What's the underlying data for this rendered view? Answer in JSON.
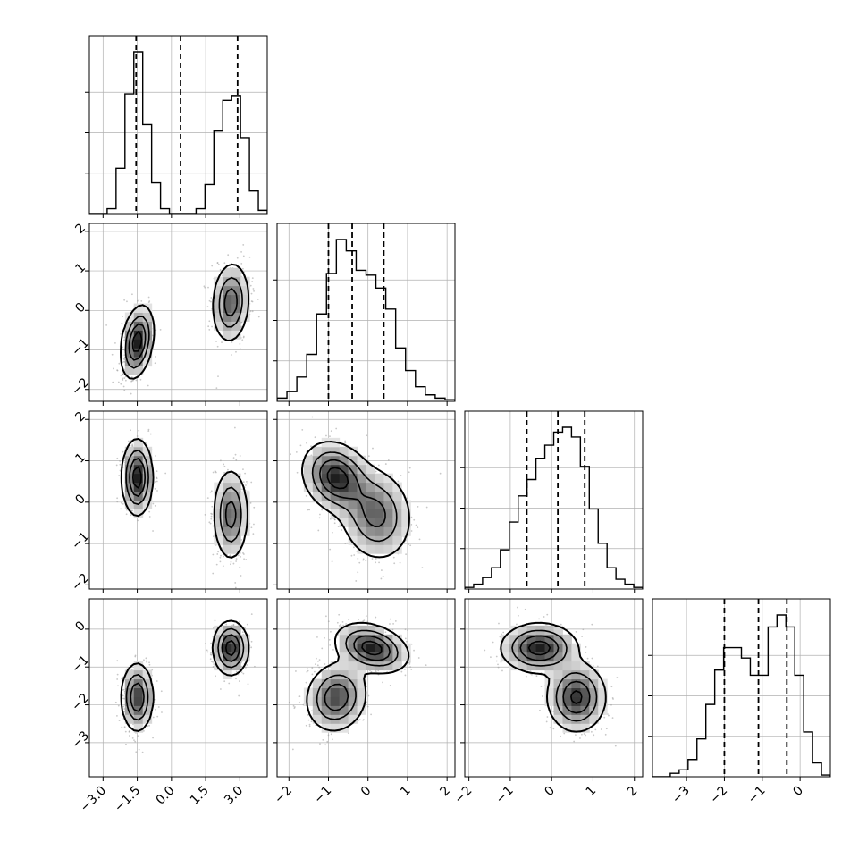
{
  "figure": {
    "type": "corner-plot"
  },
  "chart_data": {
    "type": "corner",
    "n_parameters": 4,
    "labels": [
      "",
      "",
      "",
      ""
    ],
    "ranges": [
      [
        -3.6,
        4.2
      ],
      [
        -2.3,
        2.2
      ],
      [
        -2.1,
        2.2
      ],
      [
        -3.9,
        0.8
      ]
    ],
    "ticks": [
      {
        "values": [
          -3.0,
          -1.5,
          0.0,
          1.5,
          3.0
        ],
        "labels": [
          "−3.0",
          "−1.5",
          "0.0",
          "1.5",
          "3.0"
        ]
      },
      {
        "values": [
          -2,
          -1,
          0,
          1,
          2
        ],
        "labels": [
          "−2",
          "−1",
          "0",
          "1",
          "2"
        ]
      },
      {
        "values": [
          -2,
          -1,
          0,
          1,
          2
        ],
        "labels": [
          "−2",
          "−1",
          "0",
          "1",
          "2"
        ]
      },
      {
        "values": [
          -3,
          -2,
          -1,
          0
        ],
        "labels": [
          "−3",
          "−2",
          "−1",
          "0"
        ]
      }
    ],
    "quantiles": [
      [
        -1.55,
        0.4,
        2.9
      ],
      [
        -1.0,
        -0.4,
        0.4
      ],
      [
        -0.6,
        0.15,
        0.8
      ],
      [
        -2.0,
        -1.1,
        -0.35
      ]
    ],
    "histograms": [
      {
        "bin_edges_range": [
          -3.6,
          4.2
        ],
        "counts": [
          0,
          0,
          3,
          28,
          74,
          100,
          55,
          19,
          3,
          0,
          0,
          0,
          3,
          18,
          51,
          70,
          73,
          47,
          14,
          2
        ]
      },
      {
        "bin_edges_range": [
          -2.3,
          2.2
        ],
        "counts": [
          2,
          6,
          15,
          29,
          54,
          79,
          100,
          93,
          81,
          78,
          70,
          57,
          33,
          19,
          9,
          4,
          2,
          1
        ]
      },
      {
        "bin_edges_range": [
          -2.1,
          2.2
        ],
        "counts": [
          1,
          3,
          7,
          13,
          24,
          41,
          57,
          67,
          80,
          88,
          96,
          99,
          93,
          75,
          49,
          28,
          13,
          6,
          3,
          1
        ]
      },
      {
        "bin_edges_range": [
          -3.9,
          0.8
        ],
        "counts": [
          0,
          0,
          2,
          4,
          10,
          22,
          42,
          62,
          75,
          75,
          69,
          59,
          59,
          87,
          94,
          87,
          59,
          26,
          8,
          1
        ]
      }
    ],
    "grid": true,
    "density_contours": true,
    "scatter_points": true
  }
}
